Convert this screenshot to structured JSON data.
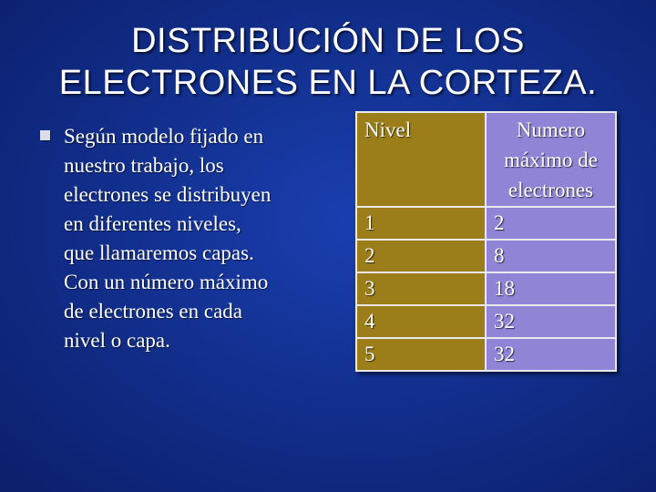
{
  "title": {
    "line1": "DISTRIBUCIÓN DE LOS",
    "line2": "ELECTRONES EN LA CORTEZA."
  },
  "bullet": {
    "icon": "square-bullet-icon",
    "lines": [
      "Según modelo fijado en",
      "nuestro trabajo, los",
      "electrones se distribuyen",
      "en diferentes niveles,",
      "que llamaremos capas.",
      "Con un número máximo",
      "de electrones en cada",
      "nivel o capa."
    ]
  },
  "table": {
    "header": {
      "col1": "Nivel",
      "col2_lines": [
        "Numero",
        "máximo de",
        "electrones"
      ]
    },
    "rows": [
      {
        "nivel": "1",
        "max": "2"
      },
      {
        "nivel": "2",
        "max": "8"
      },
      {
        "nivel": "3",
        "max": "18"
      },
      {
        "nivel": "4",
        "max": "32"
      },
      {
        "nivel": "5",
        "max": "32"
      }
    ],
    "colors": {
      "col1": "#9b7e1a",
      "col2": "#8f84d6",
      "border": "#e8e8ee"
    }
  },
  "colors": {
    "background": "#12308f",
    "text": "#ffffff"
  }
}
